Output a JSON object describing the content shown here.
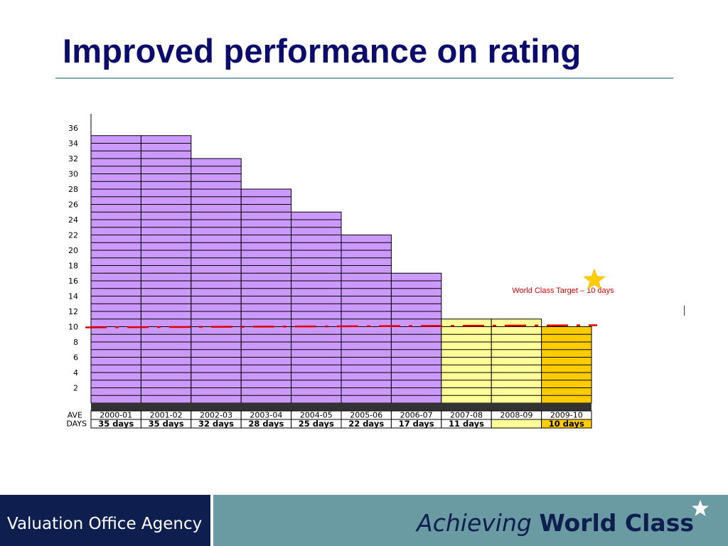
{
  "slide": {
    "title": "Improved performance on rating"
  },
  "colors": {
    "title": "#0b0b6b",
    "bar_past": "#cc99ff",
    "bar_recent": "#ffff99",
    "bar_target": "#ffcc00",
    "target_line": "#dd0000",
    "footer_left": "#0e1e4f",
    "footer_right": "#6a9aa2"
  },
  "chart_data": {
    "type": "bar",
    "categories": [
      "2000-01",
      "2001-02",
      "2002-03",
      "2003-04",
      "2004-05",
      "2005-06",
      "2006-07",
      "2007-08",
      "2008-09",
      "2009-10"
    ],
    "values": [
      35,
      35,
      32,
      28,
      25,
      22,
      17,
      11,
      11,
      10
    ],
    "bar_colors": [
      "#cc99ff",
      "#cc99ff",
      "#cc99ff",
      "#cc99ff",
      "#cc99ff",
      "#cc99ff",
      "#cc99ff",
      "#ffff99",
      "#ffff99",
      "#ffcc00"
    ],
    "days_labels": [
      "35 days",
      "35 days",
      "32 days",
      "28 days",
      "25 days",
      "22 days",
      "17 days",
      "11 days",
      "",
      "10 days"
    ],
    "row_labels": {
      "year_row": "AVE",
      "days_row": "DAYS"
    },
    "y_ticks": [
      2,
      4,
      6,
      8,
      10,
      12,
      14,
      16,
      18,
      20,
      22,
      24,
      26,
      28,
      30,
      32,
      34,
      36
    ],
    "ylim": [
      0,
      36
    ],
    "target": {
      "value": 10,
      "label": "World Class Target – 10 days",
      "icon": "star-icon"
    },
    "grid": false,
    "legend": "none"
  },
  "footer": {
    "agency": "Valuation Office Agency",
    "tagline_italic": "Achieving",
    "tagline_bold": "World Class",
    "tagline_icon": "star-icon"
  }
}
